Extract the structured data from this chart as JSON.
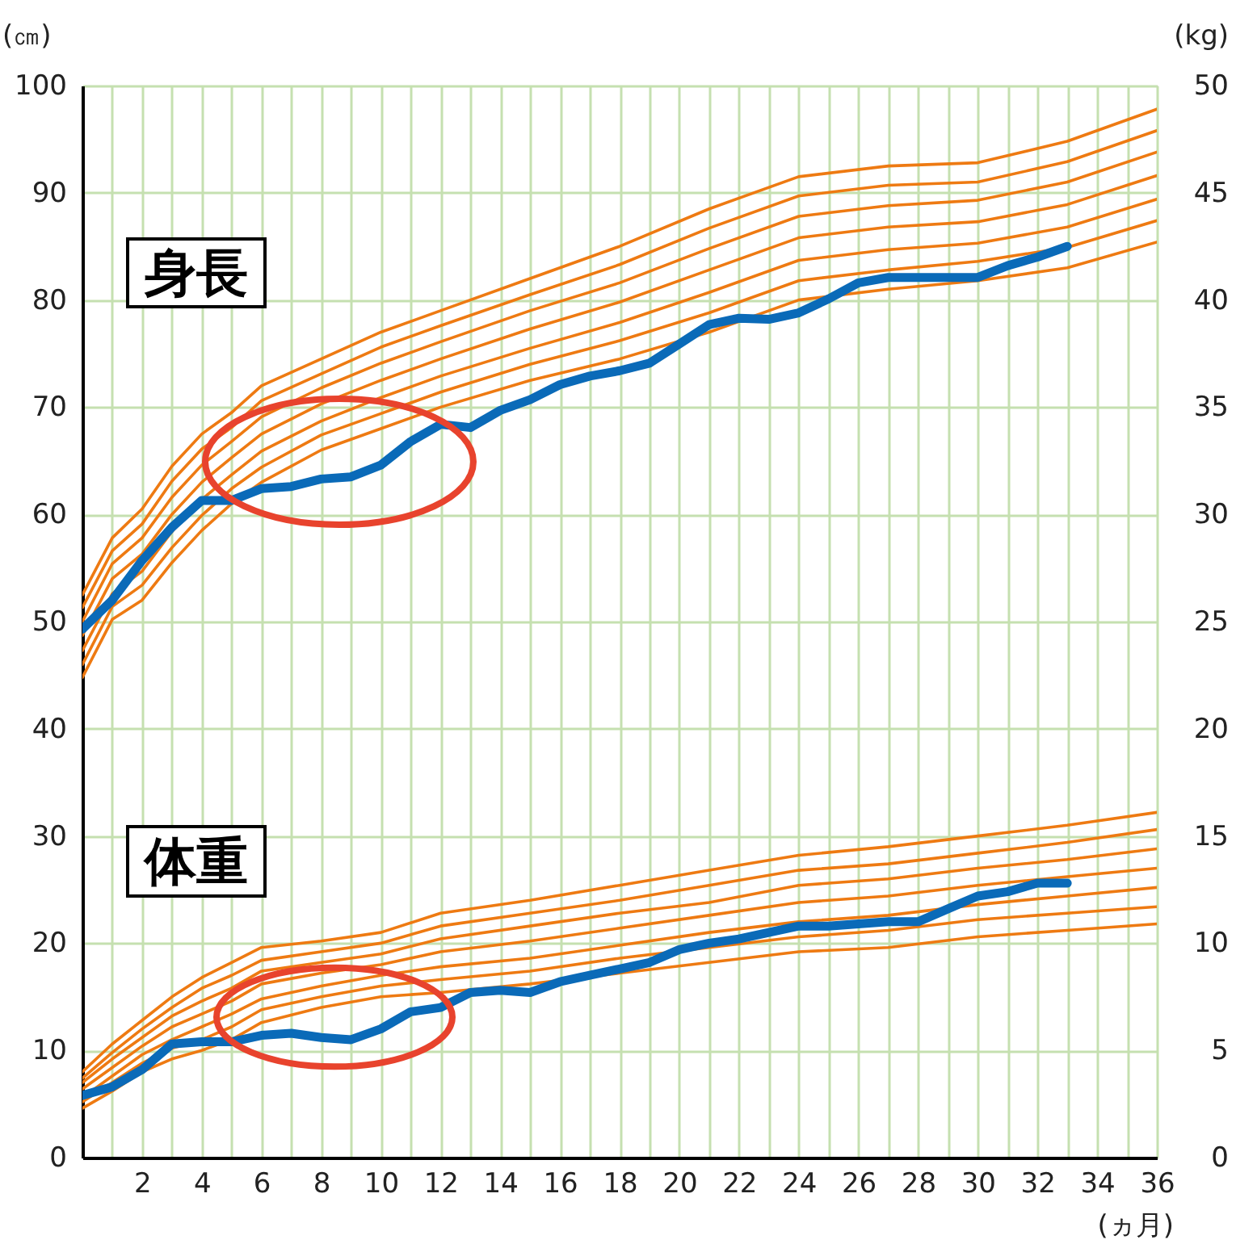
{
  "chart_data": {
    "type": "line",
    "ylabel": "(㎝)",
    "y2label": "(kg)",
    "xlabel": "(ヵ月)",
    "annotations": [
      "身長",
      "体重"
    ],
    "x": [
      0,
      1,
      2,
      3,
      4,
      5,
      6,
      8,
      10,
      12,
      15,
      18,
      21,
      24,
      27,
      30,
      33,
      36
    ],
    "xlim": [
      0,
      36
    ],
    "xticks": [
      {
        "value": 0,
        "label": null
      },
      {
        "value": 1,
        "label": null
      },
      2,
      {
        "value": 3,
        "label": null
      },
      4,
      {
        "value": 5,
        "label": null
      },
      6,
      {
        "value": 7,
        "label": null
      },
      8,
      {
        "value": 9,
        "label": null
      },
      10,
      {
        "value": 11,
        "label": null
      },
      12,
      {
        "value": 13,
        "label": null
      },
      14,
      {
        "value": 15,
        "label": null
      },
      16,
      {
        "value": 17,
        "label": null
      },
      18,
      {
        "value": 19,
        "label": null
      },
      20,
      {
        "value": 21,
        "label": null
      },
      22,
      {
        "value": 23,
        "label": null
      },
      24,
      {
        "value": 25,
        "label": null
      },
      26,
      {
        "value": 27,
        "label": null
      },
      28,
      {
        "value": 29,
        "label": null
      },
      30,
      {
        "value": 31,
        "label": null
      },
      32,
      {
        "value": 33,
        "label": null
      },
      34,
      {
        "value": 35,
        "label": null
      },
      36
    ],
    "ylim": [
      0,
      100
    ],
    "yticks": [
      0,
      10,
      20,
      30,
      40,
      50,
      60,
      70,
      80,
      90,
      100
    ],
    "y2lim": [
      0,
      50
    ],
    "y2ticks": [
      0,
      5,
      10,
      15,
      20,
      25,
      30,
      35,
      40,
      45,
      50
    ],
    "grid": true,
    "marker": "none",
    "line_style": "solid",
    "series": [
      {
        "color": "#ee7a12",
        "values": [
          44.8,
          50.2,
          52.0,
          55.5,
          58.5,
          61.0,
          63.0,
          66.0,
          68.0,
          70.0,
          72.5,
          74.5,
          77.0,
          80.0,
          81.0,
          81.8,
          83.0,
          85.4
        ]
      },
      {
        "color": "#ee7a12",
        "values": [
          46.0,
          51.4,
          53.4,
          56.9,
          59.9,
          62.4,
          64.4,
          67.4,
          69.4,
          71.4,
          74.0,
          76.2,
          78.8,
          81.8,
          82.8,
          83.6,
          84.9,
          87.4
        ]
      },
      {
        "color": "#ee7a12",
        "values": [
          47.3,
          52.6,
          54.7,
          58.4,
          61.4,
          63.7,
          65.9,
          68.7,
          70.9,
          72.9,
          75.5,
          77.9,
          80.7,
          83.7,
          84.7,
          85.3,
          86.8,
          89.4
        ]
      },
      {
        "color": "#ee7a12",
        "values": [
          48.7,
          54.0,
          56.3,
          60.0,
          63.0,
          65.3,
          67.5,
          70.3,
          72.5,
          74.5,
          77.3,
          79.8,
          82.8,
          85.8,
          86.8,
          87.3,
          88.9,
          91.6
        ]
      },
      {
        "color": "#ee7a12",
        "values": [
          50.0,
          55.4,
          57.8,
          61.6,
          64.6,
          66.8,
          69.1,
          71.8,
          74.1,
          76.1,
          79.0,
          81.6,
          84.8,
          87.8,
          88.8,
          89.3,
          91.0,
          93.8
        ]
      },
      {
        "color": "#ee7a12",
        "values": [
          51.3,
          56.6,
          59.1,
          63.1,
          66.1,
          68.1,
          70.6,
          73.1,
          75.6,
          77.6,
          80.5,
          83.3,
          86.7,
          89.7,
          90.7,
          91.0,
          92.9,
          95.8
        ]
      },
      {
        "color": "#ee7a12",
        "values": [
          52.5,
          57.8,
          60.5,
          64.5,
          67.5,
          69.5,
          72.0,
          74.5,
          77.0,
          79.0,
          82.0,
          85.0,
          88.5,
          91.5,
          92.5,
          92.8,
          94.8,
          97.8
        ]
      },
      {
        "color": "#0a6ab8",
        "x": [
          0,
          1,
          2,
          3,
          4,
          5,
          6,
          7,
          8,
          9,
          10,
          11,
          12,
          13,
          14,
          15,
          16,
          17,
          18,
          19,
          20,
          21,
          22,
          23,
          24,
          25,
          26,
          27,
          28,
          29,
          30,
          31,
          32,
          33
        ],
        "values": [
          49.3,
          52.0,
          55.7,
          58.8,
          61.3,
          61.3,
          62.4,
          62.6,
          63.3,
          63.5,
          64.6,
          66.8,
          68.4,
          68.1,
          69.7,
          70.7,
          72.1,
          72.9,
          73.4,
          74.1,
          75.9,
          77.7,
          78.3,
          78.2,
          78.8,
          80.1,
          81.6,
          82.1,
          82.1,
          82.1,
          82.1,
          83.2,
          84.0,
          85.0
        ]
      },
      {
        "color": "#ee7a12",
        "axis": "y2",
        "values": [
          2.3,
          3.1,
          4.0,
          4.6,
          5.0,
          5.5,
          6.3,
          7.0,
          7.5,
          7.7,
          8.1,
          8.6,
          9.1,
          9.6,
          9.8,
          10.3,
          10.6,
          10.9
        ]
      },
      {
        "color": "#ee7a12",
        "axis": "y2",
        "values": [
          2.6,
          3.5,
          4.4,
          5.1,
          5.5,
          6.1,
          6.9,
          7.5,
          8.0,
          8.3,
          8.7,
          9.3,
          9.8,
          10.3,
          10.6,
          11.1,
          11.4,
          11.7
        ]
      },
      {
        "color": "#ee7a12",
        "axis": "y2",
        "values": [
          2.8,
          3.8,
          4.8,
          5.5,
          6.1,
          6.7,
          7.4,
          8.0,
          8.5,
          8.9,
          9.3,
          9.9,
          10.5,
          11.0,
          11.3,
          11.8,
          12.2,
          12.6
        ]
      },
      {
        "color": "#ee7a12",
        "axis": "y2",
        "values": [
          3.2,
          4.2,
          5.2,
          6.1,
          6.7,
          7.3,
          8.1,
          8.6,
          9.0,
          9.6,
          10.1,
          10.7,
          11.3,
          11.9,
          12.2,
          12.7,
          13.1,
          13.5
        ]
      },
      {
        "color": "#ee7a12",
        "axis": "y2",
        "values": [
          3.5,
          4.6,
          5.6,
          6.6,
          7.3,
          7.9,
          8.7,
          9.1,
          9.5,
          10.2,
          10.8,
          11.4,
          11.9,
          12.7,
          13.0,
          13.5,
          13.9,
          14.4
        ]
      },
      {
        "color": "#ee7a12",
        "axis": "y2",
        "values": [
          3.7,
          4.9,
          6.0,
          7.0,
          7.9,
          8.5,
          9.2,
          9.6,
          10.0,
          10.8,
          11.4,
          12.0,
          12.7,
          13.4,
          13.7,
          14.2,
          14.7,
          15.3
        ]
      },
      {
        "color": "#ee7a12",
        "axis": "y2",
        "values": [
          4.0,
          5.3,
          6.4,
          7.5,
          8.4,
          9.1,
          9.8,
          10.1,
          10.5,
          11.4,
          12.0,
          12.7,
          13.4,
          14.1,
          14.5,
          15.0,
          15.5,
          16.1
        ]
      },
      {
        "color": "#0a6ab8",
        "axis": "y2",
        "x": [
          0,
          1,
          2,
          3,
          4,
          5,
          6,
          7,
          8,
          9,
          10,
          11,
          12,
          13,
          14,
          15,
          16,
          17,
          18,
          19,
          20,
          21,
          22,
          23,
          24,
          25,
          26,
          27,
          28,
          29,
          30,
          31,
          32,
          33
        ],
        "values": [
          2.9,
          3.3,
          4.1,
          5.3,
          5.4,
          5.4,
          5.7,
          5.8,
          5.6,
          5.5,
          6.0,
          6.8,
          7.0,
          7.7,
          7.8,
          7.7,
          8.2,
          8.5,
          8.8,
          9.1,
          9.7,
          10.0,
          10.2,
          10.5,
          10.8,
          10.8,
          10.9,
          11.0,
          11.0,
          11.6,
          12.2,
          12.4,
          12.8,
          12.8
        ]
      }
    ]
  }
}
